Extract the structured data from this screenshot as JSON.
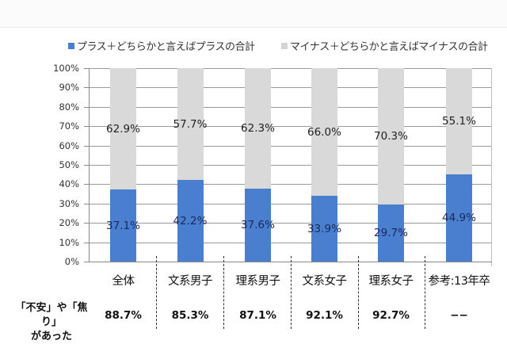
{
  "chart_data": {
    "type": "bar",
    "stacked": true,
    "percent_stacked": true,
    "title": "",
    "xlabel": "",
    "ylabel": "",
    "ylim": [
      0,
      100
    ],
    "yticks": [
      "0%",
      "10%",
      "20%",
      "30%",
      "40%",
      "50%",
      "60%",
      "70%",
      "80%",
      "90%",
      "100%"
    ],
    "grid": true,
    "legend_position": "top",
    "categories": [
      "全体",
      "文系男子",
      "理系男子",
      "文系女子",
      "理系女子",
      "参考:13年卒"
    ],
    "series": [
      {
        "name": "プラス＋どちらかと言えばプラスの合計",
        "color": "#4a7fcf",
        "values": [
          37.1,
          42.2,
          37.6,
          33.9,
          29.7,
          44.9
        ],
        "labels": [
          "37.1%",
          "42.2%",
          "37.6%",
          "33.9%",
          "29.7%",
          "44.9%"
        ]
      },
      {
        "name": "マイナス＋どちらかと言えばマイナスの合計",
        "color": "#d9d9d9",
        "values": [
          62.9,
          57.7,
          62.3,
          66.0,
          70.3,
          55.1
        ],
        "labels": [
          "62.9%",
          "57.7%",
          "62.3%",
          "66.0%",
          "70.3%",
          "55.1%"
        ]
      }
    ],
    "table_row": {
      "label_line1": "「不安」や「焦り」",
      "label_line2": "があった",
      "values": [
        "88.7%",
        "85.3%",
        "87.1%",
        "92.1%",
        "92.7%",
        "−−"
      ]
    }
  },
  "legend": {
    "plus_label": "プラス＋どちらかと言えばプラスの合計",
    "minus_label": "マイナス＋どちらかと言えばマイナスの合計"
  }
}
